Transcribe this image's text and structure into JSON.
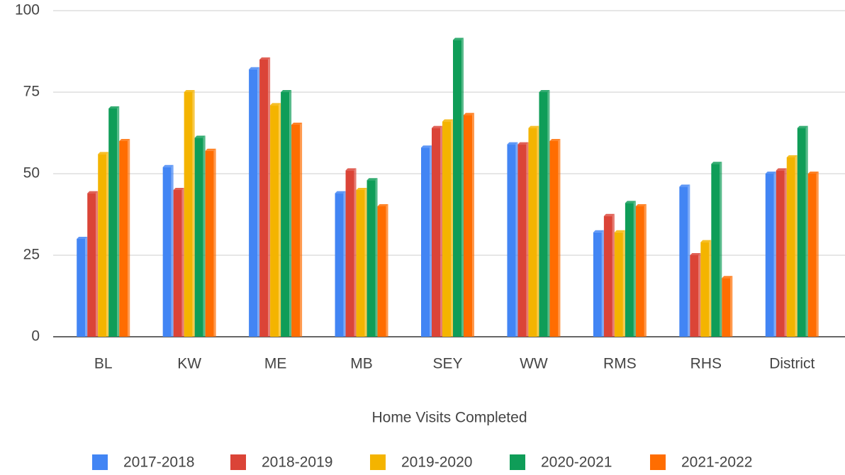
{
  "chart_data": {
    "type": "bar",
    "x_label": "Home Visits Completed",
    "categories": [
      "BL",
      "KW",
      "ME",
      "MB",
      "SEY",
      "WW",
      "RMS",
      "RHS",
      "District"
    ],
    "series": [
      {
        "name": "2017-2018",
        "color": "#4285f4",
        "values": [
          30,
          52,
          82,
          44,
          58,
          59,
          32,
          46,
          50
        ]
      },
      {
        "name": "2018-2019",
        "color": "#db4437",
        "values": [
          44,
          45,
          85,
          51,
          64,
          59,
          37,
          25,
          51
        ]
      },
      {
        "name": "2019-2020",
        "color": "#f4b400",
        "values": [
          56,
          75,
          71,
          45,
          66,
          64,
          32,
          29,
          55
        ]
      },
      {
        "name": "2020-2021",
        "color": "#0f9d58",
        "values": [
          70,
          61,
          75,
          48,
          91,
          75,
          41,
          53,
          64
        ]
      },
      {
        "name": "2021-2022",
        "color": "#ff6d01",
        "values": [
          60,
          57,
          65,
          40,
          68,
          60,
          40,
          18,
          50
        ]
      }
    ],
    "ylim": [
      0,
      100
    ],
    "yticks": [
      0,
      25,
      50,
      75,
      100
    ],
    "grid": true,
    "legend": "bottom"
  }
}
